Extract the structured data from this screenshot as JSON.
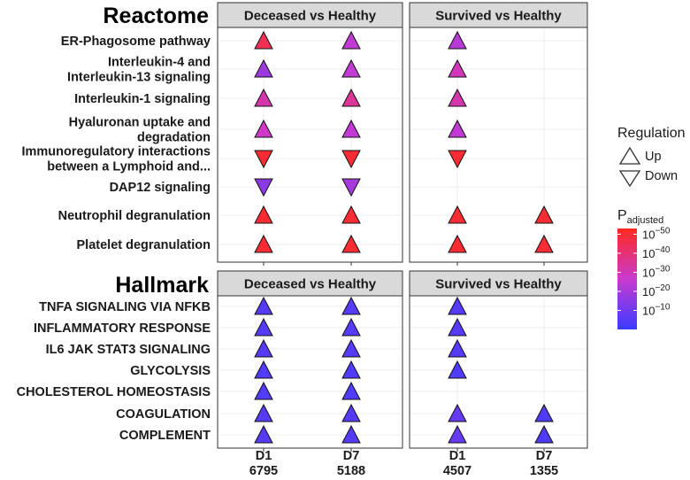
{
  "chart_data": {
    "type": "scatter",
    "subtype": "dot-matrix-enrichment",
    "columns": [
      {
        "panel": "Deceased vs Healthy",
        "time": "D1",
        "count": "6795"
      },
      {
        "panel": "Deceased vs Healthy",
        "time": "D7",
        "count": "5188"
      },
      {
        "panel": "Survived vs Healthy",
        "time": "D1",
        "count": "4507"
      },
      {
        "panel": "Survived vs Healthy",
        "time": "D7",
        "count": "1355"
      }
    ],
    "facets": [
      {
        "name": "Reactome",
        "strips": [
          "Deceased vs Healthy",
          "Survived vs Healthy"
        ],
        "rows": [
          {
            "label": [
              "ER-Phagosome pathway"
            ],
            "cells": [
              {
                "reg": "Up",
                "log10p": -45
              },
              {
                "reg": "Up",
                "log10p": -25
              },
              {
                "reg": "Up",
                "log10p": -23
              },
              null
            ]
          },
          {
            "label": [
              "Interleukin-4 and",
              "Interleukin-13 signaling"
            ],
            "cells": [
              {
                "reg": "Up",
                "log10p": -18
              },
              {
                "reg": "Up",
                "log10p": -25
              },
              {
                "reg": "Up",
                "log10p": -30
              },
              null
            ]
          },
          {
            "label": [
              "Interleukin-1 signaling"
            ],
            "cells": [
              {
                "reg": "Up",
                "log10p": -32
              },
              {
                "reg": "Up",
                "log10p": -35
              },
              {
                "reg": "Up",
                "log10p": -32
              },
              null
            ]
          },
          {
            "label": [
              "Hyaluronan uptake and",
              "degradation"
            ],
            "cells": [
              {
                "reg": "Up",
                "log10p": -28
              },
              {
                "reg": "Up",
                "log10p": -25
              },
              {
                "reg": "Up",
                "log10p": -25
              },
              null
            ]
          },
          {
            "label": [
              "Immunoregulatory interactions",
              "between a Lymphoid and..."
            ],
            "cells": [
              {
                "reg": "Down",
                "log10p": -50
              },
              {
                "reg": "Down",
                "log10p": -50
              },
              {
                "reg": "Down",
                "log10p": -50
              },
              null
            ]
          },
          {
            "label": [
              "DAP12 signaling"
            ],
            "cells": [
              {
                "reg": "Down",
                "log10p": -15
              },
              {
                "reg": "Down",
                "log10p": -20
              },
              null,
              null
            ]
          },
          {
            "label": [
              "Neutrophil degranulation"
            ],
            "cells": [
              {
                "reg": "Up",
                "log10p": -50
              },
              {
                "reg": "Up",
                "log10p": -50
              },
              {
                "reg": "Up",
                "log10p": -50
              },
              {
                "reg": "Up",
                "log10p": -50
              }
            ]
          },
          {
            "label": [
              "Platelet degranulation"
            ],
            "cells": [
              {
                "reg": "Up",
                "log10p": -50
              },
              {
                "reg": "Up",
                "log10p": -50
              },
              {
                "reg": "Up",
                "log10p": -50
              },
              {
                "reg": "Up",
                "log10p": -50
              }
            ]
          }
        ]
      },
      {
        "name": "Hallmark",
        "strips": [
          "Deceased vs Healthy",
          "Survived vs Healthy"
        ],
        "rows": [
          {
            "label": [
              "TNFA SIGNALING VIA NFKB"
            ],
            "cells": [
              {
                "reg": "Up",
                "log10p": -5
              },
              {
                "reg": "Up",
                "log10p": -5
              },
              {
                "reg": "Up",
                "log10p": -5
              },
              null
            ]
          },
          {
            "label": [
              "INFLAMMATORY RESPONSE"
            ],
            "cells": [
              {
                "reg": "Up",
                "log10p": -5
              },
              {
                "reg": "Up",
                "log10p": -5
              },
              {
                "reg": "Up",
                "log10p": -5
              },
              null
            ]
          },
          {
            "label": [
              "IL6 JAK STAT3 SIGNALING"
            ],
            "cells": [
              {
                "reg": "Up",
                "log10p": -5
              },
              {
                "reg": "Up",
                "log10p": -5
              },
              {
                "reg": "Up",
                "log10p": -5
              },
              null
            ]
          },
          {
            "label": [
              "GLYCOLYSIS"
            ],
            "cells": [
              {
                "reg": "Up",
                "log10p": -4
              },
              {
                "reg": "Up",
                "log10p": -4
              },
              {
                "reg": "Up",
                "log10p": -4
              },
              null
            ]
          },
          {
            "label": [
              "CHOLESTEROL HOMEOSTASIS"
            ],
            "cells": [
              {
                "reg": "Up",
                "log10p": -4
              },
              {
                "reg": "Up",
                "log10p": -4
              },
              null,
              null
            ]
          },
          {
            "label": [
              "COAGULATION"
            ],
            "cells": [
              {
                "reg": "Up",
                "log10p": -5
              },
              {
                "reg": "Up",
                "log10p": -5
              },
              {
                "reg": "Up",
                "log10p": -8
              },
              {
                "reg": "Up",
                "log10p": -4
              }
            ]
          },
          {
            "label": [
              "COMPLEMENT"
            ],
            "cells": [
              {
                "reg": "Up",
                "log10p": -5
              },
              {
                "reg": "Up",
                "log10p": -5
              },
              {
                "reg": "Up",
                "log10p": -8
              },
              {
                "reg": "Up",
                "log10p": -4
              }
            ]
          }
        ]
      }
    ],
    "legend": {
      "shape_title": "Regulation",
      "shape_items": [
        "Up",
        "Down"
      ],
      "color_title_main": "P",
      "color_title_sub": "adjusted",
      "color_ticks": [
        {
          "base": "10",
          "exp": "−50",
          "value": -50
        },
        {
          "base": "10",
          "exp": "−40",
          "value": -40
        },
        {
          "base": "10",
          "exp": "−30",
          "value": -30
        },
        {
          "base": "10",
          "exp": "−20",
          "value": -20
        },
        {
          "base": "10",
          "exp": "−10",
          "value": -10
        }
      ],
      "color_range": [
        -53,
        0
      ],
      "color_low": "#3b3bff",
      "color_mid": "#c93ad0",
      "color_high": "#ff2a1f",
      "placement": "right"
    },
    "grid": true
  }
}
